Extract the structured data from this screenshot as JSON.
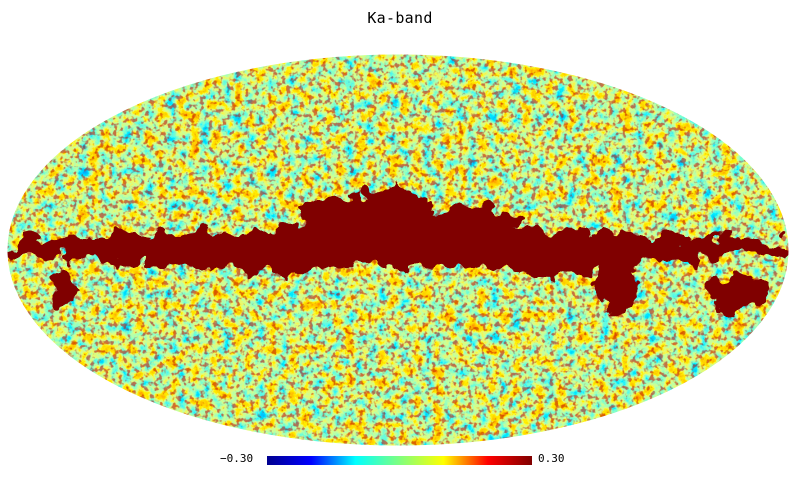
{
  "title": "Ka-band",
  "colorbar": {
    "min_label": "−0.30",
    "max_label": "0.30",
    "min_value": -0.3,
    "max_value": 0.3,
    "colormap": "jet",
    "stops": [
      "#00008f",
      "#0000ff",
      "#00ffff",
      "#7fff7f",
      "#ffff00",
      "#ff0000",
      "#800000"
    ]
  },
  "projection": "mollweide",
  "colors": {
    "background": "#ffffff",
    "galactic_plane": "#800000",
    "cold_spot": "#1e5bff",
    "mid": "#9ef35a",
    "warm": "#ff6a00"
  }
}
